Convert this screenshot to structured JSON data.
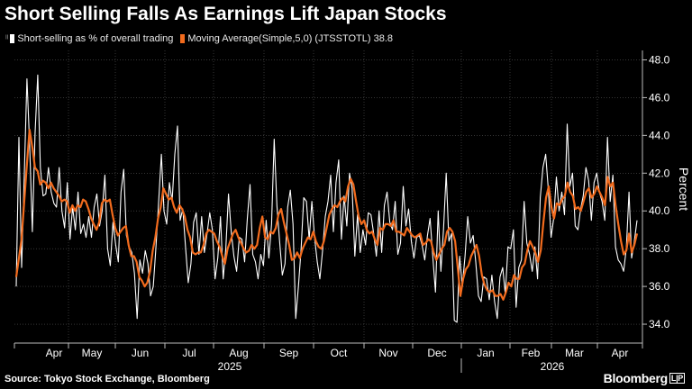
{
  "title": "Short Selling Falls As Earnings Lift Japan Stocks",
  "legend": {
    "glyph": "ᴵᴵ",
    "series1_label": "Short-selling as % of overall trading",
    "series2_label": "Moving Average(Simple,5,0) (JTSSTOTL) 38.8"
  },
  "colors": {
    "series1": "#ffffff",
    "series2": "#f26b1d",
    "grid": "#555555",
    "axis": "#bbbbbb"
  },
  "source": "Source: Tokyo Stock Exchange, Bloomberg",
  "brand": "Bloomberg",
  "brand_mark": "L|P",
  "chart_data": {
    "type": "line",
    "title": "Short Selling Falls As Earnings Lift Japan Stocks",
    "ylabel": "Percent",
    "xlabel": "",
    "ylim": [
      33,
      48.5
    ],
    "y_ticks": [
      34.0,
      36.0,
      38.0,
      40.0,
      42.0,
      44.0,
      46.0,
      48.0
    ],
    "x_ticks": [
      "Apr",
      "May",
      "Jun",
      "Jul",
      "Aug",
      "Sep",
      "Oct",
      "Nov",
      "Dec",
      "Jan",
      "Feb",
      "Mar",
      "Apr"
    ],
    "year_labels": [
      "2025",
      "2026"
    ],
    "legend_position": "top-left",
    "grid": true,
    "series": [
      {
        "name": "Short-selling as % of overall trading",
        "values": [
          36.0,
          43.9,
          37.0,
          41.8,
          47.0,
          43.5,
          38.9,
          44.1,
          47.2,
          42.3,
          40.8,
          40.9,
          42.3,
          41.0,
          40.4,
          40.2,
          42.3,
          40.0,
          39.1,
          41.5,
          38.5,
          40.2,
          39.0,
          41.0,
          38.8,
          39.3,
          38.6,
          39.7,
          38.6,
          40.2,
          40.9,
          39.2,
          40.0,
          41.9,
          38.0,
          37.1,
          39.4,
          38.2,
          37.3,
          41.0,
          42.2,
          38.7,
          38.1,
          37.8,
          36.7,
          34.3,
          37.4,
          36.7,
          37.9,
          37.2,
          35.5,
          36.0,
          38.1,
          40.5,
          43.0,
          40.0,
          39.3,
          41.5,
          40.5,
          43.0,
          44.5,
          39.5,
          40.1,
          38.1,
          36.2,
          37.2,
          39.4,
          39.9,
          37.7,
          39.7,
          37.8,
          38.8,
          39.9,
          39.0,
          36.4,
          37.5,
          39.7,
          36.4,
          38.0,
          40.9,
          38.9,
          37.6,
          36.8,
          38.6,
          38.5,
          37.3,
          39.6,
          41.4,
          37.7,
          37.3,
          36.4,
          37.7,
          37.1,
          39.5,
          37.5,
          39.3,
          43.8,
          40.3,
          38.4,
          36.6,
          37.2,
          40.2,
          41.1,
          39.3,
          34.3,
          36.0,
          38.0,
          40.7,
          40.5,
          38.5,
          40.5,
          38.6,
          37.3,
          36.4,
          37.9,
          39.7,
          40.5,
          41.9,
          38.9,
          41.5,
          42.7,
          38.5,
          40.8,
          39.2,
          42.0,
          41.2,
          37.6,
          39.8,
          37.8,
          39.0,
          38.2,
          39.9,
          39.8,
          38.8,
          37.6,
          40.0,
          37.8,
          40.3,
          41.0,
          39.4,
          39.0,
          40.5,
          37.7,
          38.3,
          41.3,
          39.2,
          40.1,
          38.4,
          37.5,
          38.6,
          38.7,
          38.2,
          37.4,
          38.7,
          39.6,
          37.6,
          35.7,
          40.0,
          36.8,
          39.0,
          42.0,
          38.4,
          38.8,
          34.2,
          34.1,
          37.6,
          36.0,
          37.6,
          39.7,
          38.3,
          38.7,
          37.3,
          35.5,
          35.2,
          36.5,
          36.4,
          35.3,
          36.6,
          35.2,
          34.3,
          36.5,
          37.0,
          35.6,
          38.1,
          38.0,
          39.0,
          34.9,
          37.0,
          37.4,
          40.5,
          38.3,
          37.7,
          36.8,
          38.1,
          36.4,
          40.7,
          42.3,
          43.0,
          41.1,
          38.6,
          39.6,
          41.8,
          40.0,
          41.0,
          39.8,
          44.6,
          41.3,
          42.0,
          39.2,
          39.0,
          40.1,
          40.8,
          42.3,
          41.6,
          39.5,
          41.5,
          42.0,
          41.0,
          40.5,
          39.5,
          43.9,
          40.5,
          41.9,
          38.1,
          37.4,
          37.2,
          36.8,
          38.0,
          41.0,
          37.5,
          38.4,
          39.5
        ],
        "color": "#ffffff"
      },
      {
        "name": "Moving Average(Simple,5,0) (JTSSTOTL) 38.8",
        "values": [
          36.5,
          37.5,
          38.5,
          40.5,
          42.5,
          44.3,
          43.4,
          42.3,
          42.1,
          41.4,
          41.6,
          41.5,
          41.2,
          41.5,
          41.2,
          41.0,
          40.8,
          40.5,
          40.6,
          40.5,
          39.9,
          40.3,
          40.0,
          40.3,
          40.2,
          40.6,
          40.5,
          40.1,
          39.6,
          39.3,
          39.0,
          39.4,
          40.4,
          40.6,
          40.5,
          40.6,
          39.8,
          39.1,
          38.7,
          38.9,
          39.1,
          39.2,
          38.2,
          37.6,
          37.6,
          37.3,
          36.5,
          36.3,
          36.0,
          36.2,
          36.8,
          37.9,
          38.6,
          39.6,
          40.2,
          41.2,
          40.9,
          40.6,
          40.7,
          40.2,
          39.9,
          40.3,
          40.1,
          39.7,
          39.0,
          38.6,
          37.8,
          37.7,
          37.8,
          37.8,
          38.2,
          38.8,
          39.0,
          38.9,
          38.8,
          38.4,
          38.1,
          37.6,
          37.2,
          38.0,
          38.4,
          38.8,
          39.0,
          38.6,
          38.3,
          38.0,
          37.8,
          37.9,
          38.2,
          38.0,
          38.2,
          39.1,
          39.7,
          38.6,
          38.5,
          38.9,
          38.8,
          39.1,
          39.8,
          40.1,
          39.4,
          38.8,
          38.2,
          37.4,
          37.5,
          37.8,
          37.5,
          38.0,
          38.3,
          38.6,
          38.5,
          38.9,
          38.4,
          38.1,
          38.0,
          38.4,
          39.1,
          39.8,
          40.1,
          40.3,
          40.2,
          40.5,
          40.7,
          40.5,
          41.3,
          41.7,
          41.4,
          40.5,
          39.7,
          39.3,
          39.5,
          39.0,
          38.8,
          38.9,
          38.5,
          38.2,
          39.1,
          39.0,
          39.3,
          39.3,
          39.2,
          39.5,
          38.9,
          38.9,
          38.8,
          38.7,
          39.1,
          38.9,
          38.7,
          38.6,
          38.7,
          38.8,
          38.2,
          38.3,
          38.5,
          38.4,
          37.8,
          37.4,
          37.7,
          38.0,
          38.2,
          38.9,
          39.1,
          38.9,
          38.4,
          37.0,
          35.5,
          36.4,
          36.9,
          37.1,
          37.6,
          37.9,
          38.2,
          37.6,
          36.6,
          36.1,
          35.8,
          35.7,
          35.8,
          35.5,
          35.5,
          35.6,
          35.3,
          35.7,
          36.2,
          36.0,
          36.6,
          36.4,
          36.4,
          37.0,
          37.2,
          37.9,
          38.4,
          38.1,
          37.8,
          37.3,
          37.9,
          39.4,
          40.7,
          41.3,
          40.2,
          39.6,
          40.4,
          40.3,
          40.6,
          40.8,
          41.5,
          41.0,
          40.8,
          40.1,
          40.2,
          40.0,
          40.5,
          41.0,
          41.2,
          40.7,
          40.9,
          41.3,
          41.0,
          40.7,
          40.3,
          41.8,
          41.3,
          41.5,
          40.3,
          39.3,
          38.4,
          37.7,
          37.9,
          38.8,
          37.8,
          38.2,
          38.8
        ],
        "color": "#f26b1d"
      }
    ]
  }
}
